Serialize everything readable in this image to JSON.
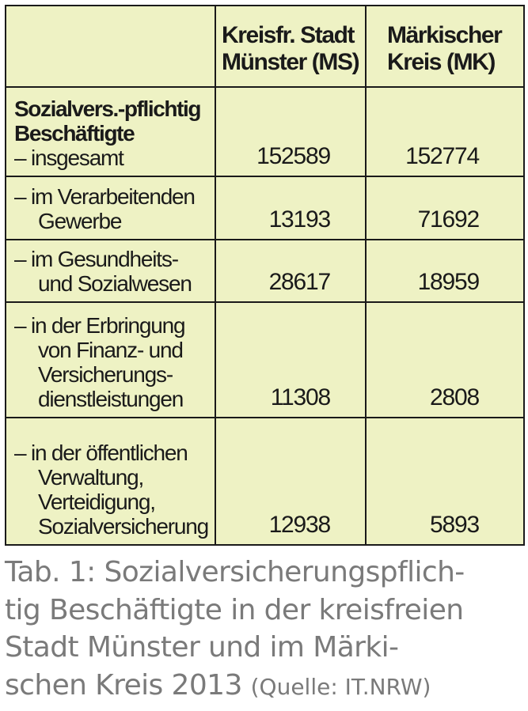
{
  "table": {
    "header": {
      "col1": "",
      "col2_line1": "Kreisfr. Stadt",
      "col2_line2": "Münster (MS)",
      "col3_line1": "Märkischer",
      "col3_line2": "Kreis (MK)"
    },
    "rows": [
      {
        "label_bold_1": "Sozialvers.-pflichtig",
        "label_bold_2": "Beschäftigte",
        "label_1": "– insgesamt",
        "ms": "152589",
        "mk": "152774"
      },
      {
        "label_1": "– im Verarbeitenden",
        "label_2": "Gewerbe",
        "ms": "13193",
        "mk": "71692"
      },
      {
        "label_1": "– im Gesundheits-",
        "label_2": "und Sozialwesen",
        "ms": "28617",
        "mk": "18959"
      },
      {
        "label_1": "– in der Erbringung",
        "label_2": "von Finanz- und",
        "label_3": "Versicherungs-",
        "label_4": "dienstleistungen",
        "ms": "11308",
        "mk": "2808"
      },
      {
        "label_1": "– in der öffentlichen",
        "label_2": "Verwaltung,",
        "label_3": "Verteidigung,",
        "label_4": "Sozialversicherung",
        "ms": "12938",
        "mk": "5893"
      }
    ]
  },
  "caption": {
    "line1": "Tab. 1: Sozialversicherungspflich-",
    "line2": "tig Beschäftigte in der kreisfreien",
    "line3": "Stadt Münster und im Märki-",
    "line4": "schen Kreis 2013",
    "source": "(Quelle: IT.NRW)"
  },
  "colors": {
    "table_background": "#eef2c4",
    "border": "#1a1a1a",
    "caption_text": "#7a7a7a"
  }
}
